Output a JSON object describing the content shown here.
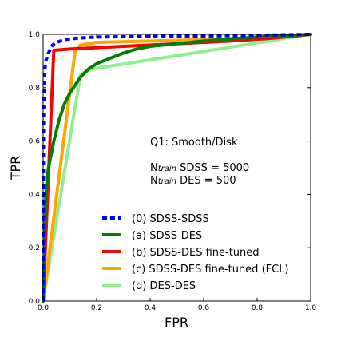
{
  "chart_data": {
    "type": "line",
    "xlabel": "FPR",
    "ylabel": "TPR",
    "xlim": [
      0,
      1
    ],
    "ylim": [
      0,
      1
    ],
    "xticks": [
      "0.0",
      "0.2",
      "0.4",
      "0.6",
      "0.8",
      "1.0"
    ],
    "yticks": [
      "0.0",
      "0.2",
      "0.4",
      "0.6",
      "0.8",
      "1.0"
    ],
    "grid": false,
    "legend_position": "lower-right",
    "annotations": [
      {
        "text": "Q1: Smooth/Disk"
      },
      {
        "prefix": "N",
        "sub": "train",
        "text": " SDSS = 5000"
      },
      {
        "prefix": "N",
        "sub": "train",
        "text": " DES = 500"
      }
    ],
    "series": [
      {
        "name": "(0) SDSS-SDSS",
        "color": "#0000ff",
        "dash": "dashed",
        "x": [
          0,
          0.002,
          0.005,
          0.01,
          0.02,
          0.035,
          0.05,
          0.08,
          0.12,
          0.2,
          0.4,
          0.7,
          1.0
        ],
        "y": [
          0,
          0.7,
          0.85,
          0.9,
          0.93,
          0.96,
          0.97,
          0.98,
          0.985,
          0.99,
          0.992,
          0.995,
          1.0
        ]
      },
      {
        "name": "(a) SDSS-DES",
        "color": "#008000",
        "dash": "solid",
        "x": [
          0,
          0.01,
          0.02,
          0.03,
          0.04,
          0.05,
          0.06,
          0.07,
          0.08,
          0.1,
          0.12,
          0.14,
          0.17,
          0.2,
          0.25,
          0.3,
          0.35,
          0.4,
          0.5,
          0.6,
          0.7,
          0.8,
          0.9,
          1.0
        ],
        "y": [
          0,
          0.4,
          0.5,
          0.55,
          0.6,
          0.64,
          0.68,
          0.71,
          0.74,
          0.78,
          0.81,
          0.84,
          0.87,
          0.89,
          0.91,
          0.93,
          0.945,
          0.955,
          0.965,
          0.975,
          0.983,
          0.99,
          0.995,
          1.0
        ]
      },
      {
        "name": "(b) SDSS-DES fine-tuned",
        "color": "#ff0000",
        "dash": "solid",
        "x": [
          0,
          0.04,
          0.1,
          0.3,
          0.5,
          0.7,
          0.85,
          1.0
        ],
        "y": [
          0,
          0.94,
          0.945,
          0.955,
          0.965,
          0.975,
          0.985,
          1.0
        ]
      },
      {
        "name": "(c) SDSS-DES fine-tuned (FCL)",
        "color": "#ffa500",
        "dash": "solid",
        "x": [
          0,
          0.12,
          0.14,
          0.2,
          0.4,
          0.6,
          0.8,
          1.0
        ],
        "y": [
          0,
          0.94,
          0.96,
          0.97,
          0.975,
          0.98,
          0.985,
          1.0
        ]
      },
      {
        "name": "(d) DES-DES",
        "color": "#90ee90",
        "dash": "solid",
        "x": [
          0,
          0.14,
          0.16,
          0.18,
          0.5,
          1.0
        ],
        "y": [
          0,
          0.85,
          0.86,
          0.87,
          0.92,
          1.0
        ]
      }
    ]
  }
}
